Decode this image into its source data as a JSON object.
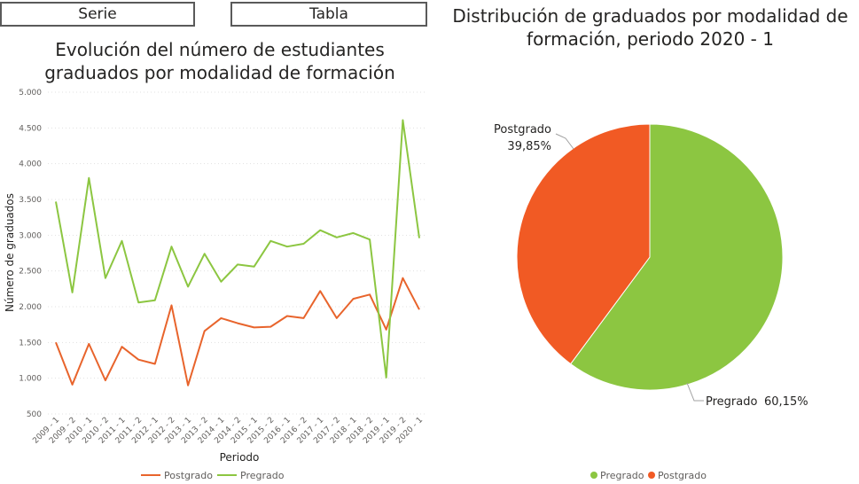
{
  "buttons": {
    "serie": "Serie",
    "tabla": "Tabla"
  },
  "chart_data": [
    {
      "type": "line",
      "title_line1": "Evolución del número de estudiantes",
      "title_line2": "graduados por modalidad de formación",
      "xlabel": "Periodo",
      "ylabel": "Número de graduados",
      "ylim": [
        500,
        5000
      ],
      "yticks": [
        500,
        1000,
        1500,
        2000,
        2500,
        3000,
        3500,
        4000,
        4500,
        5000
      ],
      "ytick_labels": [
        "500",
        "1.000",
        "1.500",
        "2.000",
        "2.500",
        "3.000",
        "3.500",
        "4.000",
        "4.500",
        "5.000"
      ],
      "grid": true,
      "legend_position": "bottom",
      "categories": [
        "2009 - 1",
        "2009 - 2",
        "2010 - 1",
        "2010 - 2",
        "2011 - 1",
        "2011 - 2",
        "2012 - 1",
        "2012 - 2",
        "2013 - 1",
        "2013 - 2",
        "2014 - 1",
        "2014 - 2",
        "2015 - 1",
        "2015 - 2",
        "2016 - 1",
        "2016 - 2",
        "2017 - 1",
        "2017 - 2",
        "2018 - 1",
        "2018 - 2",
        "2019 - 1",
        "2019 - 2",
        "2020 - 1"
      ],
      "series": [
        {
          "name": "Postgrado",
          "color": "#E8642C",
          "values": [
            1500,
            910,
            1480,
            970,
            1440,
            1260,
            1200,
            2020,
            900,
            1660,
            1840,
            1770,
            1710,
            1720,
            1870,
            1840,
            2220,
            1840,
            2110,
            2170,
            1680,
            2400,
            1960
          ]
        },
        {
          "name": "Pregrado",
          "color": "#8CC641",
          "values": [
            3470,
            2200,
            3800,
            2400,
            2920,
            2060,
            2090,
            2840,
            2280,
            2740,
            2350,
            2590,
            2560,
            2920,
            2840,
            2880,
            3070,
            2970,
            3030,
            2940,
            1010,
            4610,
            2960
          ]
        }
      ]
    },
    {
      "type": "pie",
      "title_line1": "Distribución de graduados por modalidad de",
      "title_line2": "formación, periodo 2020 - 1",
      "legend_position": "bottom",
      "slices": [
        {
          "name": "Pregrado",
          "value": 60.15,
          "color": "#8CC641",
          "label_name": "Pregrado",
          "label_value": "60,15%"
        },
        {
          "name": "Postgrado",
          "value": 39.85,
          "color": "#F15A24",
          "label_name": "Postgrado",
          "label_value": "39,85%"
        }
      ]
    }
  ]
}
